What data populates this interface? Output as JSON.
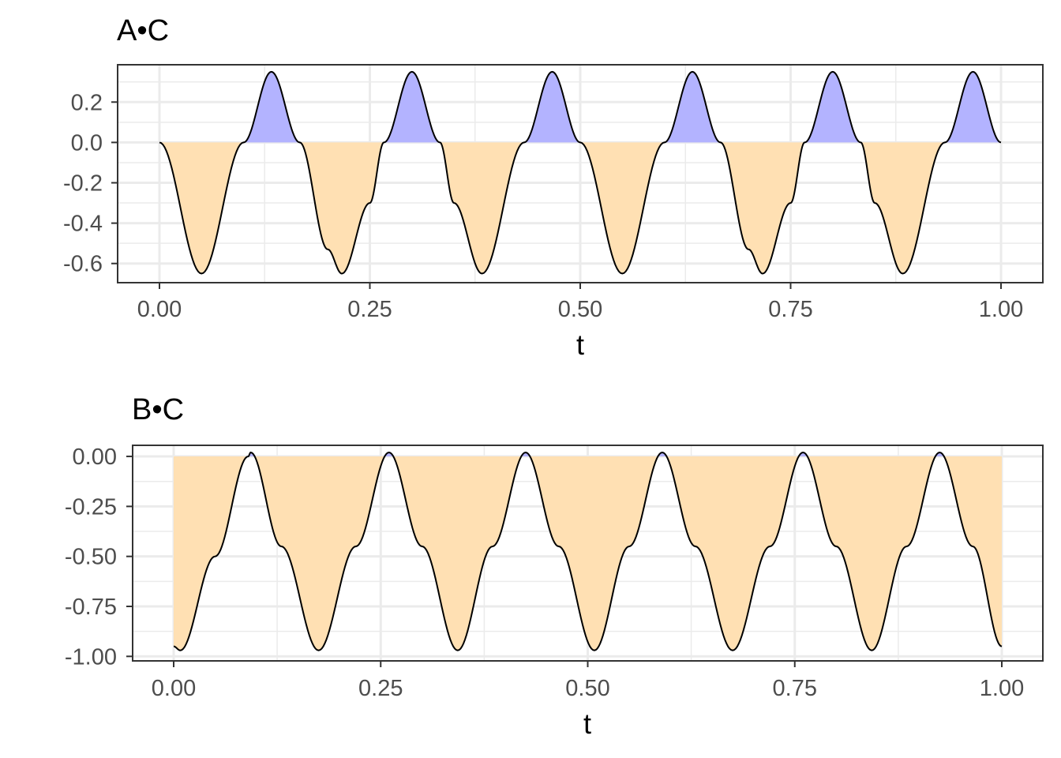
{
  "chart_data": [
    {
      "type": "area",
      "title": "A•C",
      "xlabel": "t",
      "ylabel": "",
      "xlim": [
        0.0,
        1.0
      ],
      "ylim": [
        -0.695,
        0.385
      ],
      "x_ticks": [
        "0.00",
        "0.25",
        "0.50",
        "0.75",
        "1.00"
      ],
      "y_ticks": [
        "0.2",
        "0.0",
        "-0.2",
        "-0.4",
        "-0.6"
      ],
      "y_tick_values": [
        0.2,
        0.0,
        -0.2,
        -0.4,
        -0.6
      ],
      "grid": true,
      "positive_fill_color": "#b3b3ff",
      "negative_fill_color": "#ffe0b3",
      "line_color": "#000000",
      "series": {
        "t": [
          0.0,
          0.05,
          0.1,
          0.133,
          0.1667,
          0.2,
          0.2167,
          0.25,
          0.2667,
          0.3,
          0.3333,
          0.35,
          0.3833,
          0.4333,
          0.4667,
          0.5,
          0.55,
          0.6,
          0.6333,
          0.6667,
          0.7,
          0.7167,
          0.75,
          0.7667,
          0.8,
          0.8333,
          0.85,
          0.8833,
          0.9333,
          0.9667,
          1.0
        ],
        "value": [
          0.0,
          -0.65,
          0.0,
          0.35,
          0.0,
          -0.53,
          -0.65,
          -0.3,
          0.0,
          0.35,
          0.0,
          -0.3,
          -0.65,
          0.0,
          0.35,
          0.0,
          -0.65,
          0.0,
          0.35,
          0.0,
          -0.53,
          -0.65,
          -0.3,
          0.0,
          0.35,
          0.0,
          -0.3,
          -0.65,
          0.0,
          0.35,
          0.0
        ]
      }
    },
    {
      "type": "area",
      "title": "B•C",
      "xlabel": "t",
      "ylabel": "",
      "xlim": [
        0.0,
        1.0
      ],
      "ylim": [
        -1.0225,
        0.0555
      ],
      "x_ticks": [
        "0.00",
        "0.25",
        "0.50",
        "0.75",
        "1.00"
      ],
      "y_ticks": [
        "0.00",
        "-0.25",
        "-0.50",
        "-0.75",
        "-1.00"
      ],
      "y_tick_values": [
        0.0,
        -0.25,
        -0.5,
        -0.75,
        -1.0
      ],
      "grid": true,
      "positive_fill_color": "#b3b3ff",
      "negative_fill_color": "#ffe0b3",
      "line_color": "#000000",
      "series": {
        "t": [
          0.0,
          0.008,
          0.05,
          0.09,
          0.093,
          0.13,
          0.175,
          0.22,
          0.26,
          0.3,
          0.343,
          0.385,
          0.425,
          0.465,
          0.508,
          0.55,
          0.59,
          0.63,
          0.675,
          0.72,
          0.76,
          0.8,
          0.843,
          0.885,
          0.925,
          0.965,
          1.0
        ],
        "value": [
          -0.95,
          -0.97,
          -0.5,
          0.0,
          0.02,
          -0.45,
          -0.97,
          -0.45,
          0.02,
          -0.45,
          -0.97,
          -0.45,
          0.02,
          -0.45,
          -0.97,
          -0.45,
          0.02,
          -0.45,
          -0.97,
          -0.45,
          0.02,
          -0.45,
          -0.97,
          -0.45,
          0.02,
          -0.45,
          -0.95
        ]
      }
    }
  ]
}
